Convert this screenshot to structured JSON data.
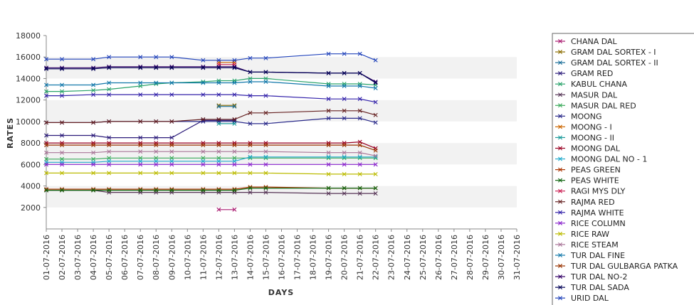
{
  "chart_data": {
    "type": "line",
    "title": "",
    "xlabel": "DAYS",
    "ylabel": "RATES",
    "ylim": [
      0,
      18000
    ],
    "yticks": [
      2000,
      4000,
      6000,
      8000,
      10000,
      12000,
      14000,
      16000,
      18000
    ],
    "grid": "alternating horizontal bands",
    "legend_position": "right",
    "x": [
      "01-07-2016",
      "02-07-2016",
      "03-07-2016",
      "04-07-2016",
      "05-07-2016",
      "06-07-2016",
      "07-07-2016",
      "08-07-2016",
      "09-07-2016",
      "10-07-2016",
      "11-07-2016",
      "12-07-2016",
      "13-07-2016",
      "14-07-2016",
      "15-07-2016",
      "16-07-2016",
      "17-07-2016",
      "18-07-2016",
      "19-07-2016",
      "20-07-2016",
      "21-07-2016",
      "22-07-2016",
      "23-07-2016",
      "24-07-2016",
      "25-07-2016",
      "26-07-2016",
      "27-07-2016",
      "28-07-2016",
      "29-07-2016",
      "30-07-2016",
      "31-07-2016"
    ],
    "series": [
      {
        "name": "CHANA DAL",
        "color": "#aa1b70",
        "values": [
          null,
          null,
          null,
          null,
          null,
          null,
          null,
          null,
          null,
          null,
          null,
          1800,
          1800,
          null,
          null,
          null,
          null,
          null,
          null,
          null,
          null,
          null,
          null,
          null,
          null,
          null,
          null,
          null,
          null,
          null,
          null
        ]
      },
      {
        "name": "GRAM DAL SORTEX - I",
        "color": "#8b6d00",
        "values": [
          null,
          null,
          null,
          null,
          null,
          null,
          null,
          null,
          null,
          null,
          null,
          11500,
          11500,
          null,
          null,
          null,
          null,
          null,
          null,
          null,
          null,
          null,
          null,
          null,
          null,
          null,
          null,
          null,
          null,
          null,
          null
        ]
      },
      {
        "name": "GRAM DAL SORTEX - II",
        "color": "#1b6f9a",
        "values": [
          null,
          null,
          null,
          null,
          null,
          null,
          null,
          null,
          null,
          null,
          null,
          11400,
          11400,
          null,
          null,
          null,
          null,
          null,
          null,
          null,
          null,
          null,
          null,
          null,
          null,
          null,
          null,
          null,
          null,
          null,
          null
        ]
      },
      {
        "name": "GRAM RED",
        "color": "#2b1b7a",
        "values": [
          8700,
          8700,
          null,
          8700,
          8500,
          null,
          8500,
          8500,
          8500,
          null,
          10100,
          10100,
          10100,
          null,
          null,
          null,
          null,
          null,
          null,
          null,
          null,
          null,
          null,
          null,
          null,
          null,
          null,
          null,
          null,
          null,
          null
        ]
      },
      {
        "name": "KABUL CHANA",
        "color": "#2aa36b",
        "values": [
          12800,
          12800,
          null,
          12900,
          13000,
          null,
          13300,
          13500,
          13600,
          null,
          13700,
          13800,
          13800,
          14000,
          14000,
          null,
          null,
          null,
          13500,
          13500,
          13500,
          13400,
          null,
          null,
          null,
          null,
          null,
          null,
          null,
          null,
          null
        ]
      },
      {
        "name": "MASUR DAL",
        "color": "#553355",
        "values": [
          3600,
          3600,
          null,
          3600,
          3400,
          null,
          3400,
          3400,
          3400,
          null,
          3400,
          3400,
          3400,
          3400,
          3400,
          null,
          null,
          null,
          3300,
          3300,
          3300,
          3300,
          null,
          null,
          null,
          null,
          null,
          null,
          null,
          null,
          null
        ]
      },
      {
        "name": "MASUR DAL RED",
        "color": "#3aaa5a",
        "values": [
          6500,
          6500,
          null,
          6500,
          6600,
          null,
          6600,
          6600,
          6600,
          null,
          6600,
          6600,
          6600,
          6600,
          6600,
          null,
          null,
          null,
          6600,
          6600,
          6600,
          6600,
          null,
          null,
          null,
          null,
          null,
          null,
          null,
          null,
          null
        ]
      },
      {
        "name": "MOONG",
        "color": "#2a2a8a",
        "values": [
          9900,
          9900,
          null,
          9900,
          10000,
          null,
          10000,
          10000,
          10000,
          null,
          10000,
          10000,
          10000,
          9800,
          9800,
          null,
          null,
          null,
          10300,
          10300,
          10300,
          9900,
          null,
          null,
          null,
          null,
          null,
          null,
          null,
          null,
          null
        ]
      },
      {
        "name": "MOONG - I",
        "color": "#cc6600",
        "values": [
          null,
          null,
          null,
          null,
          null,
          null,
          null,
          null,
          null,
          null,
          null,
          15500,
          15500,
          null,
          null,
          null,
          null,
          null,
          null,
          null,
          null,
          null,
          null,
          null,
          null,
          null,
          null,
          null,
          null,
          null,
          null
        ]
      },
      {
        "name": "MOONG - II",
        "color": "#1a9a9a",
        "values": [
          null,
          null,
          null,
          null,
          null,
          null,
          null,
          null,
          null,
          null,
          null,
          9800,
          9800,
          null,
          null,
          null,
          null,
          null,
          null,
          null,
          null,
          null,
          null,
          null,
          null,
          null,
          null,
          null,
          null,
          null,
          null
        ]
      },
      {
        "name": "MOONG DAL",
        "color": "#990022",
        "values": [
          8000,
          8000,
          null,
          8000,
          8000,
          null,
          8000,
          8000,
          8000,
          null,
          8000,
          8000,
          8000,
          8000,
          8000,
          null,
          null,
          null,
          8000,
          8000,
          8100,
          7500,
          null,
          null,
          null,
          null,
          null,
          null,
          null,
          null,
          null
        ]
      },
      {
        "name": "MOONG DAL NO - 1",
        "color": "#22aacc",
        "values": [
          6200,
          6200,
          null,
          6200,
          6300,
          null,
          6300,
          6300,
          6300,
          null,
          6300,
          6300,
          6300,
          6700,
          6700,
          null,
          null,
          null,
          6700,
          6700,
          6700,
          6700,
          null,
          null,
          null,
          null,
          null,
          null,
          null,
          null,
          null
        ]
      },
      {
        "name": "PEAS GREEN",
        "color": "#aa3300",
        "values": [
          3700,
          3700,
          null,
          3700,
          3700,
          null,
          3700,
          3700,
          3700,
          null,
          3700,
          3700,
          3700,
          3900,
          3900,
          null,
          null,
          null,
          3800,
          3800,
          3800,
          3800,
          null,
          null,
          null,
          null,
          null,
          null,
          null,
          null,
          null
        ]
      },
      {
        "name": "PEAS WHITE",
        "color": "#116611",
        "values": [
          3600,
          3600,
          null,
          3600,
          3600,
          null,
          3600,
          3600,
          3600,
          null,
          3600,
          3600,
          3600,
          3800,
          3800,
          null,
          null,
          null,
          3800,
          3800,
          3800,
          3800,
          null,
          null,
          null,
          null,
          null,
          null,
          null,
          null,
          null
        ]
      },
      {
        "name": "RAGI MYS DLY",
        "color": "#cc2255",
        "values": [
          null,
          null,
          null,
          null,
          null,
          null,
          null,
          null,
          null,
          null,
          null,
          15300,
          15300,
          null,
          null,
          null,
          null,
          null,
          null,
          null,
          null,
          null,
          null,
          null,
          null,
          null,
          null,
          null,
          null,
          null,
          null
        ]
      },
      {
        "name": "RAJMA RED",
        "color": "#662222",
        "values": [
          9900,
          9900,
          null,
          9900,
          10000,
          null,
          10000,
          10000,
          10000,
          null,
          10200,
          10200,
          10200,
          10800,
          10800,
          null,
          null,
          null,
          11000,
          11000,
          11000,
          10600,
          null,
          null,
          null,
          null,
          null,
          null,
          null,
          null,
          null
        ]
      },
      {
        "name": "RAJMA WHITE",
        "color": "#3322aa",
        "values": [
          12400,
          12400,
          null,
          12500,
          12500,
          null,
          12500,
          12500,
          12500,
          null,
          12500,
          12500,
          12500,
          12400,
          12400,
          null,
          null,
          null,
          12100,
          12100,
          12100,
          11800,
          null,
          null,
          null,
          null,
          null,
          null,
          null,
          null,
          null
        ]
      },
      {
        "name": "RICE COLUMN",
        "color": "#8822cc",
        "values": [
          6000,
          6000,
          null,
          6000,
          6000,
          null,
          6000,
          6000,
          6000,
          null,
          6000,
          6000,
          6000,
          6000,
          6000,
          null,
          null,
          null,
          6000,
          6000,
          6000,
          6000,
          null,
          null,
          null,
          null,
          null,
          null,
          null,
          null,
          null
        ]
      },
      {
        "name": "RICE RAW",
        "color": "#bbbb00",
        "values": [
          5200,
          5200,
          null,
          5200,
          5200,
          null,
          5200,
          5200,
          5200,
          null,
          5200,
          5200,
          5200,
          5200,
          5200,
          null,
          null,
          null,
          5100,
          5100,
          5100,
          5100,
          null,
          null,
          null,
          null,
          null,
          null,
          null,
          null,
          null
        ]
      },
      {
        "name": "RICE STEAM",
        "color": "#aa7799",
        "values": [
          7100,
          7100,
          null,
          7100,
          7200,
          null,
          7200,
          7200,
          7200,
          null,
          7200,
          7200,
          7200,
          7200,
          7200,
          null,
          null,
          null,
          7100,
          7100,
          7100,
          6800,
          null,
          null,
          null,
          null,
          null,
          null,
          null,
          null,
          null
        ]
      },
      {
        "name": "TUR DAL FINE",
        "color": "#1177aa",
        "values": [
          13400,
          13400,
          null,
          13400,
          13600,
          null,
          13600,
          13600,
          13600,
          null,
          13600,
          13600,
          13600,
          13700,
          13700,
          null,
          null,
          null,
          13300,
          13300,
          13300,
          13100,
          null,
          null,
          null,
          null,
          null,
          null,
          null,
          null,
          null
        ]
      },
      {
        "name": "TUR DAL GULBARGA PATKA",
        "color": "#993300",
        "values": [
          7800,
          7800,
          null,
          7800,
          7800,
          null,
          7800,
          7800,
          7800,
          null,
          7800,
          7800,
          7800,
          7800,
          7800,
          null,
          null,
          null,
          7800,
          7800,
          7800,
          7300,
          null,
          null,
          null,
          null,
          null,
          null,
          null,
          null,
          null
        ]
      },
      {
        "name": "TUR DAL NO-2",
        "color": "#330066",
        "values": [
          15000,
          15000,
          null,
          15000,
          15100,
          null,
          15100,
          15100,
          15100,
          null,
          15100,
          15100,
          15100,
          14600,
          14600,
          null,
          null,
          null,
          14500,
          14500,
          14500,
          13700,
          null,
          null,
          null,
          null,
          null,
          null,
          null,
          null,
          null
        ]
      },
      {
        "name": "TUR DAL SADA",
        "color": "#000055",
        "values": [
          14900,
          14900,
          null,
          14900,
          15000,
          null,
          15000,
          15000,
          15000,
          null,
          15000,
          15000,
          15000,
          14600,
          14600,
          null,
          null,
          null,
          14500,
          14500,
          14500,
          13600,
          null,
          null,
          null,
          null,
          null,
          null,
          null,
          null,
          null
        ]
      },
      {
        "name": "URID DAL",
        "color": "#2244bb",
        "values": [
          15800,
          15800,
          null,
          15800,
          16000,
          null,
          16000,
          16000,
          16000,
          null,
          15700,
          15700,
          15700,
          15900,
          15900,
          null,
          null,
          null,
          16300,
          16300,
          16300,
          15700,
          null,
          null,
          null,
          null,
          null,
          null,
          null,
          null,
          null
        ]
      }
    ]
  }
}
